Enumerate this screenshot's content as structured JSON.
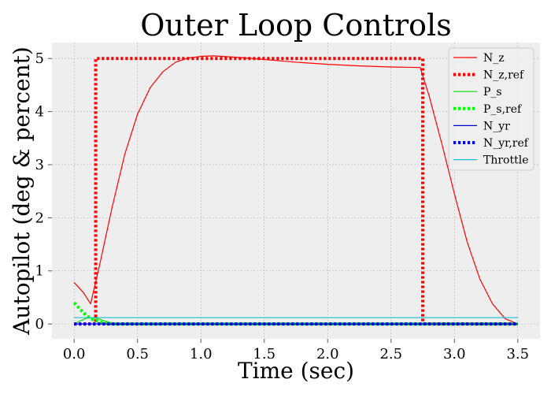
{
  "chart_data": {
    "type": "line",
    "title": "Outer Loop Controls",
    "xlabel": "Time (sec)",
    "ylabel": "Autopilot (deg & percent)",
    "xlim": [
      -0.175,
      3.675
    ],
    "ylim": [
      -0.28,
      5.3
    ],
    "xticks": [
      0.0,
      0.5,
      1.0,
      1.5,
      2.0,
      2.5,
      3.0,
      3.5
    ],
    "xtick_labels": [
      "0.0",
      "0.5",
      "1.0",
      "1.5",
      "2.0",
      "2.5",
      "3.0",
      "3.5"
    ],
    "yticks": [
      0,
      1,
      2,
      3,
      4,
      5
    ],
    "ytick_labels": [
      "0",
      "1",
      "2",
      "3",
      "4",
      "5"
    ],
    "grid": true,
    "legend_position": "top-right",
    "series": [
      {
        "name": "N_z",
        "color": "#ff0000",
        "style": "solid",
        "x": [
          0.0,
          0.07,
          0.13,
          0.2,
          0.3,
          0.4,
          0.5,
          0.6,
          0.7,
          0.8,
          0.9,
          1.0,
          1.1,
          1.3,
          1.5,
          1.75,
          2.0,
          2.25,
          2.5,
          2.73,
          2.8,
          2.9,
          3.0,
          3.1,
          3.2,
          3.3,
          3.4,
          3.5
        ],
        "y": [
          0.78,
          0.6,
          0.38,
          1.1,
          2.2,
          3.2,
          3.95,
          4.45,
          4.75,
          4.93,
          5.01,
          5.04,
          5.05,
          5.02,
          4.98,
          4.93,
          4.89,
          4.86,
          4.84,
          4.83,
          4.3,
          3.4,
          2.45,
          1.55,
          0.85,
          0.38,
          0.1,
          0.0
        ]
      },
      {
        "name": "N_z,ref",
        "color": "#ff0000",
        "style": "dotted",
        "x": [
          0.0,
          0.13,
          0.17,
          0.17,
          2.72,
          2.75,
          2.75,
          3.5
        ],
        "y": [
          0.0,
          0.0,
          0.0,
          5.0,
          5.0,
          5.0,
          0.0,
          0.0
        ]
      },
      {
        "name": "P_s",
        "color": "#00e400",
        "style": "solid",
        "x": [
          0.0,
          0.05,
          0.1,
          0.15,
          0.2,
          0.25,
          0.3,
          0.4,
          3.5
        ],
        "y": [
          0.0,
          0.06,
          0.11,
          0.12,
          0.09,
          0.05,
          0.02,
          0.0,
          0.0
        ]
      },
      {
        "name": "P_s,ref",
        "color": "#00ff00",
        "style": "dotted",
        "x": [
          0.0,
          0.05,
          0.1,
          0.15,
          0.2,
          0.25,
          0.3,
          3.5
        ],
        "y": [
          0.4,
          0.27,
          0.15,
          0.08,
          0.04,
          0.01,
          0.0,
          0.0
        ]
      },
      {
        "name": "N_yr",
        "color": "#0000cc",
        "style": "solid",
        "x": [
          0.0,
          3.5
        ],
        "y": [
          0.0,
          0.0
        ]
      },
      {
        "name": "N_yr,ref",
        "color": "#0000dd",
        "style": "dotted",
        "x": [
          0.0,
          3.5
        ],
        "y": [
          0.0,
          0.0
        ]
      },
      {
        "name": "Throttle",
        "color": "#17becf",
        "style": "solid",
        "x": [
          0.0,
          3.5
        ],
        "y": [
          0.12,
          0.12
        ]
      }
    ]
  }
}
